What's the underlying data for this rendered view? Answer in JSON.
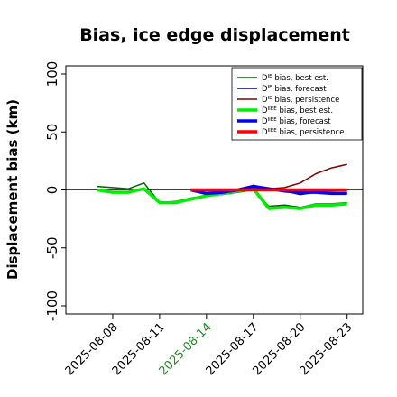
{
  "chart_data": {
    "type": "line",
    "title": "Bias, ice edge displacement",
    "xlabel": "",
    "ylabel": "Displacement bias (km)",
    "ylim": [
      -100,
      100
    ],
    "yticks": [
      100,
      50,
      0,
      -50,
      -100
    ],
    "xlim": [
      "2025-08-05",
      "2025-08-24"
    ],
    "xticks": [
      "2025-08-08",
      "2025-08-11",
      "2025-08-14",
      "2025-08-17",
      "2025-08-20",
      "2025-08-23"
    ],
    "highlighted_xtick": "2025-08-14",
    "highlight_color": "#228b22",
    "grid": false,
    "zero_line": true,
    "legend_position": "top-right",
    "series": [
      {
        "name_parts": [
          "D",
          "IE",
          " bias, best est."
        ],
        "color": "#006400",
        "width": 1.5,
        "x": [
          "2025-08-07",
          "2025-08-08",
          "2025-08-09",
          "2025-08-10",
          "2025-08-11",
          "2025-08-12",
          "2025-08-13",
          "2025-08-14",
          "2025-08-15",
          "2025-08-16",
          "2025-08-17",
          "2025-08-18",
          "2025-08-19",
          "2025-08-20",
          "2025-08-21",
          "2025-08-22",
          "2025-08-23"
        ],
        "values": [
          3,
          2,
          1,
          6,
          -11,
          -10,
          -7,
          -5,
          -4,
          -2,
          0,
          -14,
          -13,
          -15,
          -12,
          -12,
          -11
        ]
      },
      {
        "name_parts": [
          "D",
          "IE",
          " bias, forecast"
        ],
        "color": "#00008b",
        "width": 1.5,
        "x": [
          "2025-08-13",
          "2025-08-14",
          "2025-08-15",
          "2025-08-16",
          "2025-08-17",
          "2025-08-18",
          "2025-08-19",
          "2025-08-20",
          "2025-08-21",
          "2025-08-22",
          "2025-08-23"
        ],
        "values": [
          0,
          -4,
          -3,
          0,
          4,
          1,
          -1,
          -4,
          -2,
          -2,
          -3
        ]
      },
      {
        "name_parts": [
          "D",
          "IE",
          " bias, persistence"
        ],
        "color": "#800000",
        "width": 1.5,
        "x": [
          "2025-08-13",
          "2025-08-14",
          "2025-08-15",
          "2025-08-16",
          "2025-08-17",
          "2025-08-18",
          "2025-08-19",
          "2025-08-20",
          "2025-08-21",
          "2025-08-22",
          "2025-08-23"
        ],
        "values": [
          0,
          0,
          0,
          0,
          0,
          1,
          2,
          6,
          14,
          19,
          22
        ]
      },
      {
        "name_parts": [
          "D",
          "IIEE",
          " bias, best est."
        ],
        "color": "#00ee00",
        "width": 3.5,
        "x": [
          "2025-08-07",
          "2025-08-08",
          "2025-08-09",
          "2025-08-10",
          "2025-08-11",
          "2025-08-12",
          "2025-08-13",
          "2025-08-14",
          "2025-08-15",
          "2025-08-16",
          "2025-08-17",
          "2025-08-18",
          "2025-08-19",
          "2025-08-20",
          "2025-08-21",
          "2025-08-22",
          "2025-08-23"
        ],
        "values": [
          0,
          -2,
          -2,
          1,
          -11,
          -11,
          -8,
          -5,
          -3,
          -1,
          1,
          -16,
          -15,
          -16,
          -13,
          -13,
          -12
        ]
      },
      {
        "name_parts": [
          "D",
          "IIEE",
          " bias, forecast"
        ],
        "color": "#0000ff",
        "width": 3.5,
        "x": [
          "2025-08-13",
          "2025-08-14",
          "2025-08-15",
          "2025-08-16",
          "2025-08-17",
          "2025-08-18",
          "2025-08-19",
          "2025-08-20",
          "2025-08-21",
          "2025-08-22",
          "2025-08-23"
        ],
        "values": [
          0,
          -3,
          -2,
          0,
          3,
          1,
          -1,
          -2,
          -2,
          -3,
          -3
        ]
      },
      {
        "name_parts": [
          "D",
          "IIEE",
          " bias, persistence"
        ],
        "color": "#ff0000",
        "width": 3.5,
        "x": [
          "2025-08-13",
          "2025-08-14",
          "2025-08-15",
          "2025-08-16",
          "2025-08-17",
          "2025-08-18",
          "2025-08-19",
          "2025-08-20",
          "2025-08-21",
          "2025-08-22",
          "2025-08-23"
        ],
        "values": [
          0,
          0,
          0,
          0,
          0,
          0,
          0,
          0,
          0,
          0,
          0
        ]
      }
    ]
  }
}
